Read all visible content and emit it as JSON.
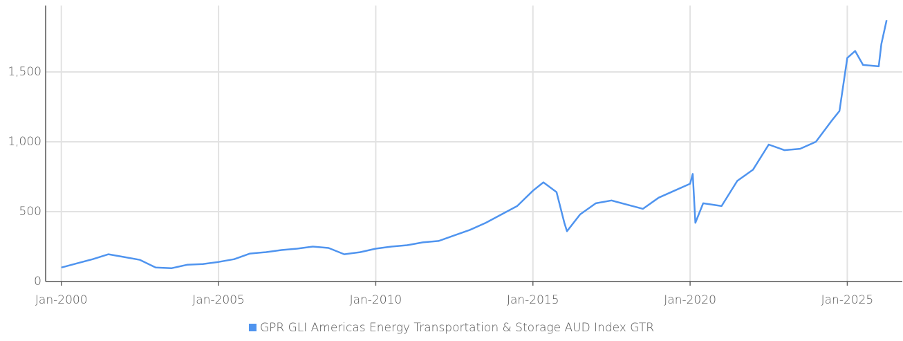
{
  "chart_data": {
    "type": "line",
    "x": [
      "2000-01",
      "2000-07",
      "2001-01",
      "2001-07",
      "2002-01",
      "2002-07",
      "2003-01",
      "2003-07",
      "2004-01",
      "2004-07",
      "2005-01",
      "2005-07",
      "2006-01",
      "2006-07",
      "2007-01",
      "2007-07",
      "2008-01",
      "2008-07",
      "2009-01",
      "2009-07",
      "2010-01",
      "2010-07",
      "2011-01",
      "2011-07",
      "2012-01",
      "2012-07",
      "2013-01",
      "2013-07",
      "2014-01",
      "2014-07",
      "2015-01",
      "2015-05",
      "2015-10",
      "2016-01",
      "2016-02",
      "2016-07",
      "2017-01",
      "2017-07",
      "2018-01",
      "2018-07",
      "2019-01",
      "2019-07",
      "2020-01",
      "2020-02",
      "2020-03",
      "2020-06",
      "2021-01",
      "2021-07",
      "2022-01",
      "2022-07",
      "2023-01",
      "2023-07",
      "2024-01",
      "2024-07",
      "2024-10",
      "2025-01",
      "2025-04",
      "2025-07",
      "2026-01",
      "2026-02",
      "2026-04"
    ],
    "series": [
      {
        "name": "GPR GLI Americas Energy Transportation & Storage AUD Index GTR",
        "color": "#4f94ef",
        "values": [
          100,
          130,
          160,
          195,
          175,
          155,
          100,
          95,
          120,
          125,
          140,
          160,
          200,
          210,
          225,
          235,
          250,
          240,
          195,
          210,
          235,
          250,
          260,
          280,
          290,
          330,
          370,
          420,
          480,
          540,
          650,
          710,
          640,
          420,
          360,
          480,
          560,
          580,
          550,
          520,
          600,
          650,
          700,
          770,
          420,
          560,
          540,
          720,
          800,
          980,
          940,
          950,
          1000,
          1150,
          1220,
          1600,
          1650,
          1550,
          1540,
          1700,
          1870
        ]
      }
    ],
    "xlim": [
      "1999-07",
      "2026-10"
    ],
    "xticks": [
      {
        "value": "2000-01",
        "label": "Jan-2000"
      },
      {
        "value": "2005-01",
        "label": "Jan-2005"
      },
      {
        "value": "2010-01",
        "label": "Jan-2010"
      },
      {
        "value": "2015-01",
        "label": "Jan-2015"
      },
      {
        "value": "2020-01",
        "label": "Jan-2020"
      },
      {
        "value": "2025-01",
        "label": "Jan-2025"
      }
    ],
    "ylim": [
      0,
      1975
    ],
    "yticks": [
      0,
      500,
      {
        "value": 1000,
        "label": "1,000"
      },
      {
        "value": 1500,
        "label": "1,500"
      }
    ],
    "grid": true
  }
}
